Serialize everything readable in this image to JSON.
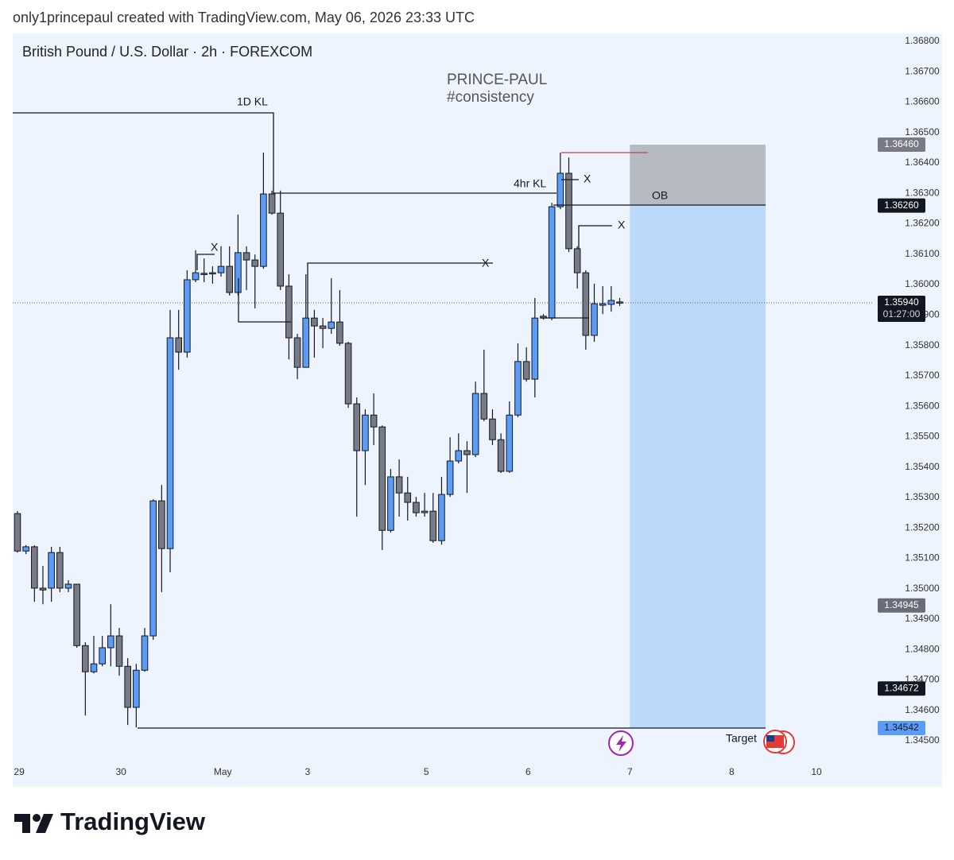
{
  "attribution": "only1princepaul created with TradingView.com, May 06, 2026 23:33 UTC",
  "brand": "TradingView",
  "chart_data": {
    "type": "candlestick",
    "title": "British Pound / U.S. Dollar · 2h · FOREXCOM",
    "watermark": [
      "PRINCE-PAUL",
      "#consistency"
    ],
    "up_color": "#5b9cf6",
    "down_color": "#787b86",
    "open": [
      1.35247,
      1.35124,
      1.35138,
      1.35002,
      1.35002,
      1.35119,
      1.35002,
      1.35015,
      1.34813,
      1.34727,
      1.34753,
      1.34806,
      1.34845,
      1.34745,
      1.3461,
      1.34732,
      1.34845,
      1.35289,
      1.35132,
      1.35825,
      1.35778,
      1.36016,
      1.36037,
      1.36037,
      1.36039,
      1.3606,
      1.35974,
      1.36105,
      1.36081,
      1.3606,
      1.36298,
      1.36235,
      1.35995,
      1.35825,
      1.35728,
      1.3589,
      1.35864,
      1.35856,
      1.35877,
      1.35807,
      1.35608,
      1.35454,
      1.35571,
      1.35532,
      1.35192,
      1.35368,
      1.35315,
      1.35284,
      1.3525,
      1.35255,
      1.35158,
      1.3531,
      1.3542,
      1.35454,
      1.35441,
      1.35642,
      1.35558,
      1.3549,
      1.35386,
      1.35571,
      1.35747,
      1.35689,
      1.35896,
      1.3589,
      1.36256,
      1.36366,
      1.36118,
      1.36039,
      1.35833,
      1.35932,
      1.35935,
      1.35943
    ],
    "high": [
      1.35255,
      1.35143,
      1.35143,
      1.35075,
      1.35138,
      1.35138,
      1.35028,
      1.35015,
      1.34824,
      1.34845,
      1.34845,
      1.34949,
      1.34871,
      1.34772,
      1.34753,
      1.34871,
      1.35294,
      1.35341,
      1.35917,
      1.35917,
      1.36047,
      1.36113,
      1.36086,
      1.3606,
      1.36126,
      1.36126,
      1.3623,
      1.36126,
      1.36099,
      1.36434,
      1.36309,
      1.36309,
      1.36034,
      1.35838,
      1.36034,
      1.35917,
      1.3589,
      1.36021,
      1.35982,
      1.35812,
      1.35629,
      1.3559,
      1.35642,
      1.35537,
      1.35394,
      1.35425,
      1.35368,
      1.35302,
      1.35315,
      1.35315,
      1.35368,
      1.35498,
      1.35511,
      1.35485,
      1.35681,
      1.35786,
      1.3559,
      1.35511,
      1.35616,
      1.35807,
      1.35794,
      1.35956,
      1.35903,
      1.36269,
      1.36434,
      1.36418,
      1.36126,
      1.36047,
      1.36003,
      1.35995,
      1.35995,
      1.35956
    ],
    "low": [
      1.35119,
      1.35114,
      1.34957,
      1.34949,
      1.34957,
      1.34989,
      1.34989,
      1.34806,
      1.34583,
      1.34722,
      1.34745,
      1.34745,
      1.34714,
      1.34552,
      1.34544,
      1.34727,
      1.34832,
      1.34989,
      1.35054,
      1.3572,
      1.3576,
      1.36008,
      1.36008,
      1.36003,
      1.36026,
      1.35964,
      1.35964,
      1.35982,
      1.35922,
      1.36052,
      1.3623,
      1.35982,
      1.35754,
      1.35689,
      1.35728,
      1.3576,
      1.35791,
      1.35838,
      1.35799,
      1.35595,
      1.35237,
      1.35341,
      1.35472,
      1.35127,
      1.35185,
      1.35237,
      1.35224,
      1.35237,
      1.35237,
      1.35151,
      1.35145,
      1.35302,
      1.35412,
      1.35315,
      1.35433,
      1.35551,
      1.35472,
      1.35381,
      1.35381,
      1.35564,
      1.35681,
      1.35629,
      1.35885,
      1.35883,
      1.36248,
      1.36107,
      1.35987,
      1.35786,
      1.35812,
      1.35903,
      1.35911,
      1.3593
    ],
    "close": [
      1.35124,
      1.35138,
      1.35002,
      1.34996,
      1.35119,
      1.35002,
      1.35015,
      1.34813,
      1.34727,
      1.34753,
      1.34806,
      1.34845,
      1.34745,
      1.3461,
      1.34732,
      1.34845,
      1.35289,
      1.35132,
      1.35825,
      1.35778,
      1.36016,
      1.36039,
      1.36037,
      1.36039,
      1.3606,
      1.35974,
      1.36105,
      1.36081,
      1.3606,
      1.36298,
      1.36235,
      1.35995,
      1.35825,
      1.35728,
      1.3589,
      1.35864,
      1.35856,
      1.35877,
      1.35807,
      1.35608,
      1.35454,
      1.35571,
      1.35532,
      1.35192,
      1.35368,
      1.35315,
      1.35284,
      1.3525,
      1.35255,
      1.35158,
      1.3531,
      1.3542,
      1.35454,
      1.35441,
      1.35642,
      1.35558,
      1.3549,
      1.35386,
      1.35571,
      1.35747,
      1.35689,
      1.3589,
      1.3589,
      1.36256,
      1.36366,
      1.36118,
      1.36039,
      1.35833,
      1.35937,
      1.35937,
      1.35948,
      1.3594
    ],
    "xlim": [
      -0.56,
      100.85
    ],
    "xticks": [
      {
        "value": 0.2,
        "label": "29"
      },
      {
        "value": 12.2,
        "label": "30"
      },
      {
        "value": 24.2,
        "label": "May"
      },
      {
        "value": 34.2,
        "label": "3"
      },
      {
        "value": 48.2,
        "label": "5"
      },
      {
        "value": 60.2,
        "label": "6"
      },
      {
        "value": 72.2,
        "label": "7"
      },
      {
        "value": 84.2,
        "label": "8"
      },
      {
        "value": 94.2,
        "label": "10"
      }
    ],
    "ylim": [
      1.3444,
      1.36826
    ],
    "yticks": [
      {
        "value": 1.368,
        "label": "1.36800"
      },
      {
        "value": 1.367,
        "label": "1.36700"
      },
      {
        "value": 1.366,
        "label": "1.36600"
      },
      {
        "value": 1.365,
        "label": "1.36500"
      },
      {
        "value": 1.364,
        "label": "1.36400"
      },
      {
        "value": 1.363,
        "label": "1.36300"
      },
      {
        "value": 1.362,
        "label": "1.36200"
      },
      {
        "value": 1.361,
        "label": "1.36100"
      },
      {
        "value": 1.36,
        "label": "1.36000"
      },
      {
        "value": 1.359,
        "label": "1.35900"
      },
      {
        "value": 1.358,
        "label": "1.35800"
      },
      {
        "value": 1.357,
        "label": "1.35700"
      },
      {
        "value": 1.356,
        "label": "1.35600"
      },
      {
        "value": 1.355,
        "label": "1.35500"
      },
      {
        "value": 1.354,
        "label": "1.35400"
      },
      {
        "value": 1.353,
        "label": "1.35300"
      },
      {
        "value": 1.352,
        "label": "1.35200"
      },
      {
        "value": 1.351,
        "label": "1.35100"
      },
      {
        "value": 1.35,
        "label": "1.35000"
      },
      {
        "value": 1.349,
        "label": "1.34900"
      },
      {
        "value": 1.348,
        "label": "1.34800"
      },
      {
        "value": 1.347,
        "label": "1.34700"
      },
      {
        "value": 1.346,
        "label": "1.34600"
      },
      {
        "value": 1.345,
        "label": "1.34500"
      }
    ],
    "price_labels": [
      {
        "value": 1.3646,
        "label": "1.36460",
        "color": "#787b86"
      },
      {
        "value": 1.3626,
        "label": "1.36260",
        "color": "#131722"
      },
      {
        "value": 1.3594,
        "label": "1.35940",
        "color": "#131722"
      },
      {
        "value": 1.34945,
        "label": "1.34945",
        "color": "#6a6d78"
      },
      {
        "value": 1.34672,
        "label": "1.34672",
        "color": "#131722"
      },
      {
        "value": 1.34542,
        "label": "1.34542",
        "color": "#5b9cf6"
      }
    ],
    "countdown": "01:27:00",
    "position": {
      "stop": 1.3646,
      "entry": 1.3626,
      "target": 1.34542,
      "start": 72.2,
      "end": 88.2
    },
    "annotations": [
      "1D KL",
      "4hr KL",
      "OB",
      "X",
      "X",
      "X",
      "X",
      "Target"
    ]
  }
}
